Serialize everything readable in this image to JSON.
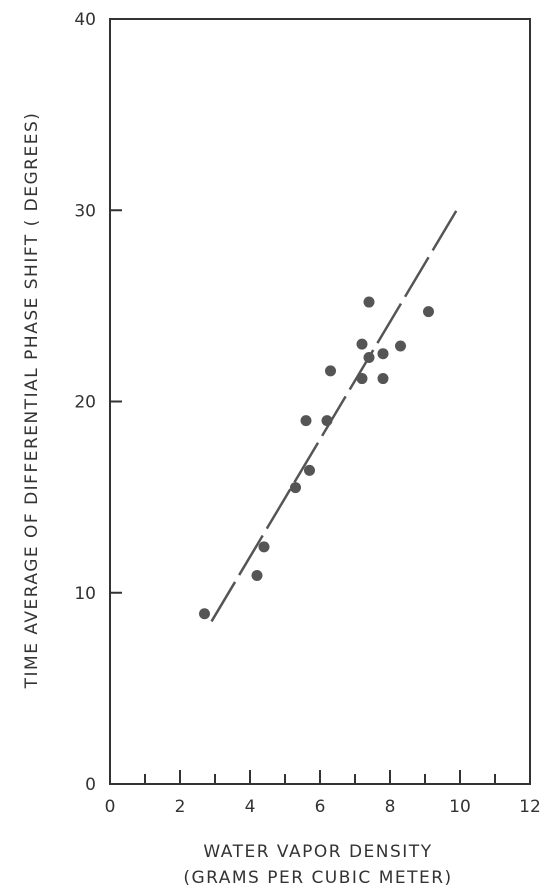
{
  "chart_data": {
    "type": "scatter",
    "title": "",
    "xlabel_line1": "WATER VAPOR DENSITY",
    "xlabel_line2": "(GRAMS PER CUBIC METER)",
    "ylabel": "TIME AVERAGE OF DIFFERENTIAL PHASE SHIFT ( DEGREES)",
    "xlim": [
      0,
      12
    ],
    "ylim": [
      0,
      40
    ],
    "x_ticks": [
      0,
      2,
      4,
      6,
      8,
      10,
      12
    ],
    "y_ticks": [
      0,
      10,
      20,
      30,
      40
    ],
    "grid": false,
    "points": [
      {
        "x": 2.7,
        "y": 8.9
      },
      {
        "x": 4.2,
        "y": 10.9
      },
      {
        "x": 4.4,
        "y": 12.4
      },
      {
        "x": 5.3,
        "y": 15.5
      },
      {
        "x": 5.7,
        "y": 16.4
      },
      {
        "x": 5.6,
        "y": 19.0
      },
      {
        "x": 6.2,
        "y": 19.0
      },
      {
        "x": 6.3,
        "y": 21.6
      },
      {
        "x": 7.2,
        "y": 21.2
      },
      {
        "x": 7.2,
        "y": 23.0
      },
      {
        "x": 7.4,
        "y": 22.3
      },
      {
        "x": 7.4,
        "y": 25.2
      },
      {
        "x": 7.8,
        "y": 22.5
      },
      {
        "x": 7.8,
        "y": 21.2
      },
      {
        "x": 8.3,
        "y": 22.9
      },
      {
        "x": 9.1,
        "y": 24.7
      }
    ],
    "fit_line": {
      "x": [
        2.9,
        10.0
      ],
      "y": [
        8.5,
        30.3
      ],
      "style": "dashed"
    }
  }
}
